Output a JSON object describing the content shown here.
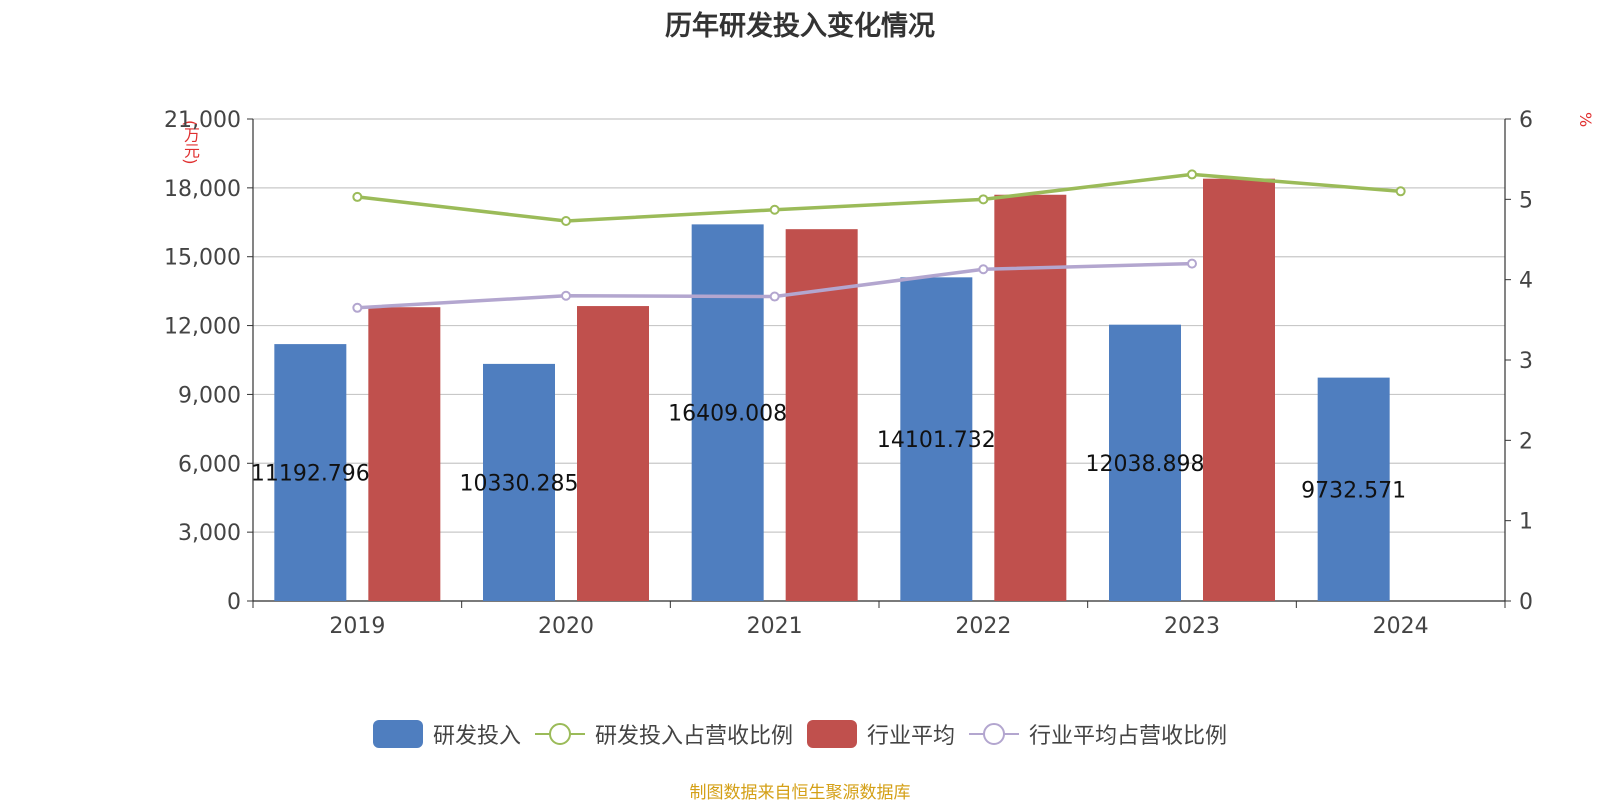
{
  "chart_data": {
    "type": "bar",
    "title": "历年研发投入变化情况",
    "y_unit": "(万元)",
    "y2_unit": "%",
    "categories": [
      "2019",
      "2020",
      "2021",
      "2022",
      "2023",
      "2024"
    ],
    "ylim": [
      0,
      21000
    ],
    "yticks": [
      "21,000",
      "18,000",
      "15,000",
      "12,000",
      "9,000",
      "6,000",
      "3,000",
      "0"
    ],
    "y2lim": [
      0,
      6
    ],
    "y2ticks": [
      "6",
      "5",
      "4",
      "3",
      "2",
      "1",
      "0"
    ],
    "grid": true,
    "legend_position": "bottom",
    "series": [
      {
        "name": "研发投入",
        "kind": "bar",
        "axis": "left",
        "color": "#4f7ebf",
        "values": [
          11192.796,
          10330.285,
          16409.008,
          14101.732,
          12038.898,
          9732.571
        ],
        "labels": [
          "11192.796",
          "10330.285",
          "16409.008",
          "14101.732",
          "12038.898",
          "9732.571"
        ]
      },
      {
        "name": "研发投入占营收比例",
        "kind": "line",
        "axis": "right",
        "color": "#9bbb59",
        "values": [
          5.03,
          4.73,
          4.87,
          5.0,
          5.31,
          5.1
        ]
      },
      {
        "name": "行业平均",
        "kind": "bar",
        "axis": "left",
        "color": "#c0504d",
        "values": [
          12800,
          12850,
          16200,
          17700,
          18400,
          null
        ]
      },
      {
        "name": "行业平均占营收比例",
        "kind": "line",
        "axis": "right",
        "color": "#b3a6cf",
        "values": [
          3.65,
          3.8,
          3.79,
          4.13,
          4.2,
          null
        ]
      }
    ]
  },
  "source": "制图数据来自恒生聚源数据库"
}
